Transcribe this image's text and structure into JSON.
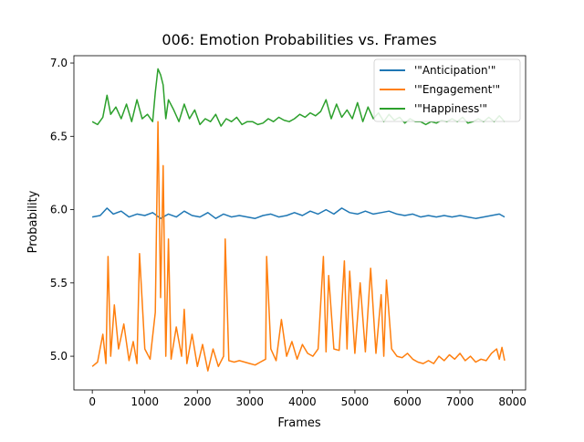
{
  "chart_data": {
    "type": "line",
    "title": "006: Emotion Probabilities vs. Frames",
    "xlabel": "Frames",
    "ylabel": "Probability",
    "xlim": [
      -350,
      8250
    ],
    "ylim": [
      4.77,
      7.05
    ],
    "xticks": [
      0,
      1000,
      2000,
      3000,
      4000,
      5000,
      6000,
      7000,
      8000
    ],
    "xtick_labels": [
      "0",
      "1000",
      "2000",
      "3000",
      "4000",
      "5000",
      "6000",
      "7000",
      "8000"
    ],
    "yticks": [
      5.0,
      5.5,
      6.0,
      6.5,
      7.0
    ],
    "ytick_labels": [
      "5.0",
      "5.5",
      "6.0",
      "6.5",
      "7.0"
    ],
    "grid": false,
    "legend_position": "upper right",
    "series": [
      {
        "name": "'\"Anticipation'\"",
        "color": "#1f77b4",
        "x": [
          0,
          150,
          280,
          400,
          550,
          700,
          850,
          1000,
          1150,
          1300,
          1450,
          1600,
          1750,
          1900,
          2050,
          2200,
          2350,
          2500,
          2650,
          2800,
          2950,
          3100,
          3250,
          3400,
          3550,
          3700,
          3850,
          4000,
          4150,
          4300,
          4450,
          4600,
          4750,
          4900,
          5050,
          5200,
          5350,
          5500,
          5650,
          5800,
          5950,
          6100,
          6250,
          6400,
          6550,
          6700,
          6850,
          7000,
          7150,
          7300,
          7450,
          7600,
          7750,
          7850
        ],
        "y": [
          5.95,
          5.96,
          6.01,
          5.97,
          5.99,
          5.95,
          5.97,
          5.96,
          5.98,
          5.94,
          5.97,
          5.95,
          5.99,
          5.96,
          5.95,
          5.98,
          5.94,
          5.97,
          5.95,
          5.96,
          5.95,
          5.94,
          5.96,
          5.97,
          5.95,
          5.96,
          5.98,
          5.96,
          5.99,
          5.97,
          6.0,
          5.97,
          6.01,
          5.98,
          5.97,
          5.99,
          5.97,
          5.98,
          5.99,
          5.97,
          5.96,
          5.97,
          5.95,
          5.96,
          5.95,
          5.96,
          5.95,
          5.96,
          5.95,
          5.94,
          5.95,
          5.96,
          5.97,
          5.95
        ]
      },
      {
        "name": "'\"Engagement'\"",
        "color": "#ff7f0e",
        "x": [
          0,
          100,
          200,
          260,
          300,
          350,
          420,
          500,
          600,
          700,
          780,
          850,
          900,
          1000,
          1100,
          1200,
          1250,
          1300,
          1350,
          1400,
          1450,
          1500,
          1600,
          1700,
          1750,
          1800,
          1900,
          2000,
          2100,
          2200,
          2300,
          2400,
          2500,
          2530,
          2600,
          2700,
          2800,
          2900,
          3000,
          3100,
          3200,
          3300,
          3320,
          3400,
          3500,
          3600,
          3700,
          3800,
          3900,
          4000,
          4100,
          4200,
          4300,
          4400,
          4450,
          4500,
          4600,
          4700,
          4800,
          4850,
          4900,
          5000,
          5100,
          5200,
          5300,
          5400,
          5500,
          5550,
          5600,
          5700,
          5800,
          5900,
          6000,
          6100,
          6200,
          6300,
          6400,
          6500,
          6600,
          6700,
          6800,
          6900,
          7000,
          7100,
          7200,
          7300,
          7400,
          7500,
          7600,
          7700,
          7750,
          7800,
          7850
        ],
        "y": [
          4.93,
          4.96,
          5.15,
          4.95,
          5.68,
          5.0,
          5.35,
          5.05,
          5.22,
          4.97,
          5.1,
          4.95,
          5.7,
          5.05,
          4.98,
          5.3,
          6.6,
          5.4,
          6.3,
          5.0,
          5.8,
          4.98,
          5.2,
          5.0,
          5.32,
          4.95,
          5.15,
          4.93,
          5.08,
          4.9,
          5.05,
          4.93,
          5.0,
          5.8,
          4.97,
          4.96,
          4.97,
          4.96,
          4.95,
          4.94,
          4.96,
          4.98,
          5.68,
          5.05,
          4.97,
          5.25,
          5.0,
          5.1,
          4.98,
          5.08,
          5.02,
          5.0,
          5.05,
          5.68,
          5.03,
          5.55,
          5.05,
          5.04,
          5.65,
          5.05,
          5.58,
          5.02,
          5.5,
          5.03,
          5.6,
          5.02,
          5.42,
          5.0,
          5.52,
          5.05,
          5.0,
          4.99,
          5.02,
          4.98,
          4.96,
          4.95,
          4.97,
          4.95,
          5.0,
          4.97,
          5.01,
          4.98,
          5.02,
          4.97,
          5.0,
          4.96,
          4.98,
          4.97,
          5.02,
          5.05,
          4.98,
          5.06,
          4.97
        ]
      },
      {
        "name": "'\"Happiness'\"",
        "color": "#2ca02c",
        "x": [
          0,
          100,
          200,
          280,
          350,
          450,
          550,
          650,
          750,
          850,
          950,
          1050,
          1150,
          1200,
          1250,
          1300,
          1350,
          1400,
          1450,
          1550,
          1650,
          1750,
          1850,
          1950,
          2050,
          2150,
          2250,
          2350,
          2450,
          2550,
          2650,
          2750,
          2850,
          2950,
          3050,
          3150,
          3250,
          3350,
          3450,
          3550,
          3650,
          3750,
          3850,
          3950,
          4050,
          4150,
          4250,
          4350,
          4450,
          4550,
          4650,
          4750,
          4850,
          4950,
          5050,
          5150,
          5250,
          5350,
          5450,
          5550,
          5650,
          5750,
          5850,
          5950,
          6050,
          6150,
          6250,
          6350,
          6450,
          6550,
          6650,
          6750,
          6850,
          6950,
          7050,
          7150,
          7250,
          7350,
          7450,
          7550,
          7650,
          7750,
          7850
        ],
        "y": [
          6.6,
          6.58,
          6.63,
          6.78,
          6.65,
          6.7,
          6.62,
          6.72,
          6.6,
          6.75,
          6.62,
          6.65,
          6.6,
          6.8,
          6.96,
          6.92,
          6.85,
          6.62,
          6.75,
          6.68,
          6.6,
          6.72,
          6.62,
          6.68,
          6.58,
          6.62,
          6.6,
          6.65,
          6.57,
          6.62,
          6.6,
          6.63,
          6.58,
          6.6,
          6.6,
          6.58,
          6.59,
          6.62,
          6.6,
          6.63,
          6.61,
          6.6,
          6.62,
          6.65,
          6.63,
          6.66,
          6.64,
          6.67,
          6.75,
          6.62,
          6.72,
          6.63,
          6.68,
          6.62,
          6.73,
          6.6,
          6.7,
          6.62,
          6.66,
          6.6,
          6.65,
          6.61,
          6.63,
          6.59,
          6.62,
          6.6,
          6.6,
          6.58,
          6.6,
          6.59,
          6.61,
          6.6,
          6.62,
          6.6,
          6.63,
          6.59,
          6.6,
          6.62,
          6.6,
          6.63,
          6.6,
          6.64,
          6.6
        ]
      }
    ]
  }
}
